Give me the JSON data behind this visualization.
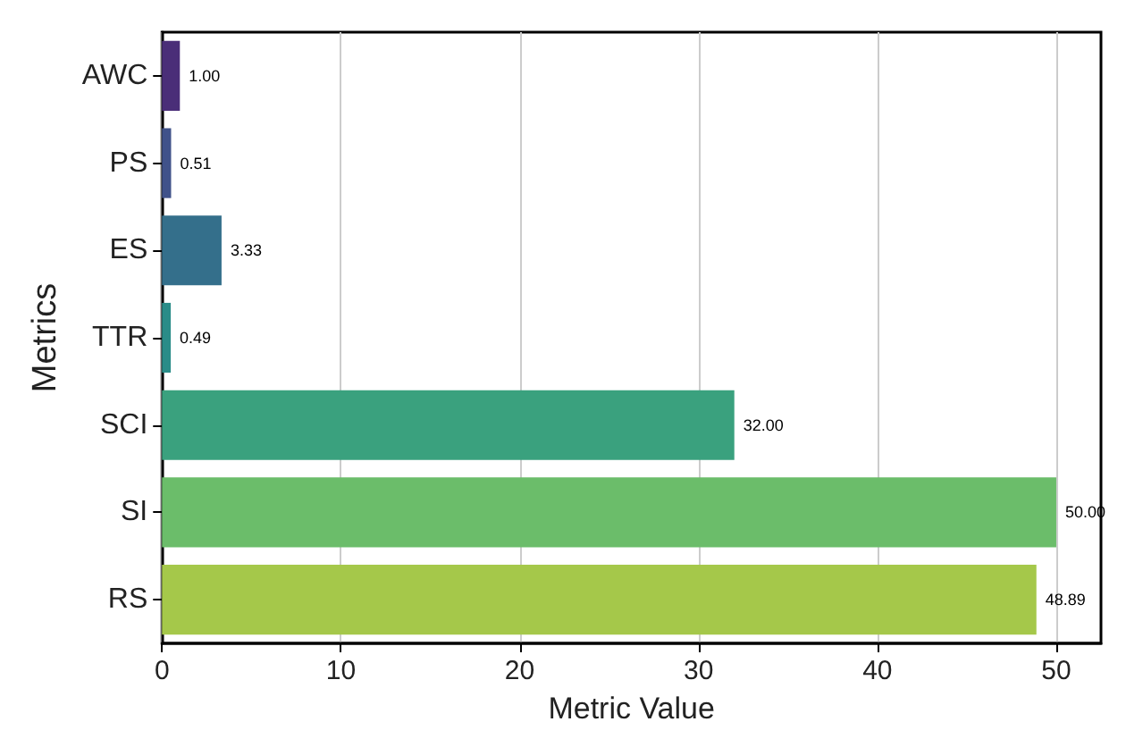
{
  "chart_data": {
    "type": "bar",
    "orientation": "horizontal",
    "xlabel": "Metric Value",
    "ylabel": "Metrics",
    "categories": [
      "AWC",
      "PS",
      "ES",
      "TTR",
      "SCI",
      "SI",
      "RS"
    ],
    "values": [
      1.0,
      0.51,
      3.33,
      0.49,
      32.0,
      50.0,
      48.89
    ],
    "value_labels": [
      "1.00",
      "0.51",
      "3.33",
      "0.49",
      "32.00",
      "50.00",
      "48.89"
    ],
    "colors": [
      "#4a2e78",
      "#40528a",
      "#346f8b",
      "#2a8c88",
      "#3aa17e",
      "#6bbd6a",
      "#a5c84a"
    ],
    "xlim": [
      0,
      52.5
    ],
    "xticks": [
      0,
      10,
      20,
      30,
      40,
      50
    ],
    "grid": "x"
  }
}
